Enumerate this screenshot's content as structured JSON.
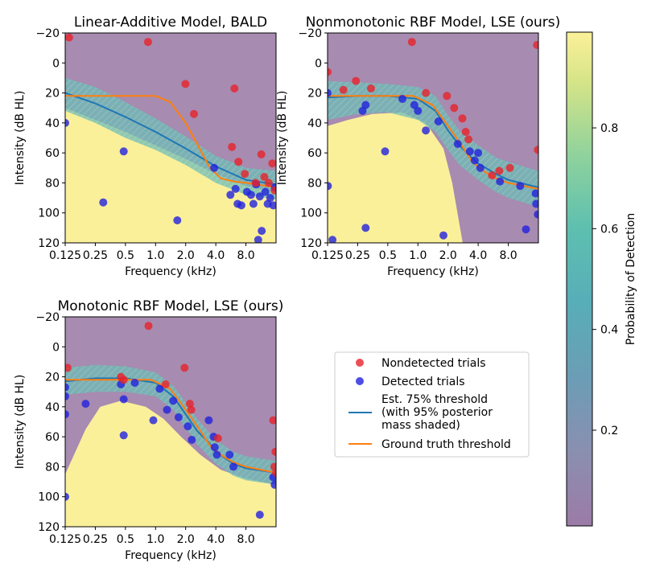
{
  "chart_data": [
    {
      "type": "scatter",
      "title": "Linear-Additive Model, BALD",
      "xlabel": "Frequency (kHz)",
      "ylabel": "Intensity (dB HL)",
      "xscale": "log2",
      "xlim": [
        0.125,
        16
      ],
      "ylim": [
        120,
        -20
      ],
      "xticks": [
        {
          "value": 0.125,
          "label": "0.125"
        },
        {
          "value": 0.25,
          "label": "0.25"
        },
        {
          "value": 0.5,
          "label": "0.5"
        },
        {
          "value": 1,
          "label": "1.0"
        },
        {
          "value": 2,
          "label": "2.0"
        },
        {
          "value": 4,
          "label": "4.0"
        },
        {
          "value": 8,
          "label": "8.0"
        }
      ],
      "yticks": [
        -20,
        0,
        20,
        40,
        60,
        80,
        100,
        120
      ],
      "nondetected": [
        [
          0.137,
          -17
        ],
        [
          0.84,
          -14
        ],
        [
          1.99,
          14
        ],
        [
          2.42,
          34
        ],
        [
          6.14,
          17
        ],
        [
          5.8,
          56
        ],
        [
          6.73,
          66
        ],
        [
          7.8,
          74
        ],
        [
          10,
          80
        ],
        [
          11.4,
          61
        ],
        [
          12.2,
          76
        ],
        [
          13.5,
          80
        ],
        [
          14.7,
          67
        ],
        [
          15.5,
          85
        ]
      ],
      "detected": [
        [
          0.125,
          40
        ],
        [
          0.3,
          93
        ],
        [
          0.48,
          59
        ],
        [
          1.65,
          105
        ],
        [
          3.85,
          70
        ],
        [
          5.6,
          88
        ],
        [
          6.3,
          84
        ],
        [
          6.6,
          94
        ],
        [
          7.2,
          95
        ],
        [
          8.2,
          86
        ],
        [
          9.0,
          88
        ],
        [
          9.5,
          94
        ],
        [
          10.1,
          81
        ],
        [
          10.6,
          118
        ],
        [
          11.0,
          89
        ],
        [
          11.5,
          112
        ],
        [
          12.5,
          86
        ],
        [
          13.2,
          94
        ],
        [
          14.0,
          90
        ],
        [
          15.0,
          95
        ],
        [
          15.6,
          83
        ]
      ],
      "threshold_est": [
        [
          0.125,
          20
        ],
        [
          0.25,
          27
        ],
        [
          0.5,
          36
        ],
        [
          1,
          46
        ],
        [
          2,
          57
        ],
        [
          4,
          69
        ],
        [
          8,
          78
        ],
        [
          16,
          81
        ]
      ],
      "threshold_band": {
        "upper": [
          [
            0.125,
            10
          ],
          [
            0.25,
            16
          ],
          [
            0.5,
            26
          ],
          [
            1,
            37
          ],
          [
            2,
            49
          ],
          [
            4,
            62
          ],
          [
            8,
            70
          ],
          [
            16,
            72
          ]
        ],
        "lower": [
          [
            0.125,
            32
          ],
          [
            0.25,
            40
          ],
          [
            0.5,
            50
          ],
          [
            1,
            58
          ],
          [
            2,
            68
          ],
          [
            4,
            80
          ],
          [
            8,
            88
          ],
          [
            16,
            91
          ]
        ]
      },
      "ground_truth": [
        [
          0.125,
          22
        ],
        [
          0.25,
          22
        ],
        [
          0.5,
          22
        ],
        [
          1,
          22
        ],
        [
          1.4,
          26
        ],
        [
          2,
          40
        ],
        [
          2.8,
          58
        ],
        [
          3.5,
          70
        ],
        [
          4.5,
          77
        ],
        [
          6,
          79
        ],
        [
          8,
          80
        ],
        [
          16,
          83
        ]
      ],
      "background_boundary": [
        [
          0.125,
          30
        ],
        [
          0.25,
          38
        ],
        [
          0.5,
          46
        ],
        [
          1,
          55
        ],
        [
          2,
          64
        ],
        [
          4,
          74
        ],
        [
          8,
          82
        ],
        [
          16,
          86
        ]
      ]
    },
    {
      "type": "scatter",
      "title": "Nonmonotonic RBF Model, LSE (ours)",
      "xlabel": "Frequency (kHz)",
      "ylabel": "Intensity (dB HL)",
      "xscale": "log2",
      "xlim": [
        0.125,
        16
      ],
      "ylim": [
        120,
        -20
      ],
      "xticks": [
        {
          "value": 0.125,
          "label": "0.125"
        },
        {
          "value": 0.25,
          "label": "0.25"
        },
        {
          "value": 0.5,
          "label": "0.5"
        },
        {
          "value": 1,
          "label": "1.0"
        },
        {
          "value": 2,
          "label": "2.0"
        },
        {
          "value": 4,
          "label": "4.0"
        },
        {
          "value": 8,
          "label": "8.0"
        }
      ],
      "yticks": [
        -20,
        0,
        20,
        40,
        60,
        80,
        100,
        120
      ],
      "nondetected": [
        [
          0.125,
          6
        ],
        [
          0.18,
          18
        ],
        [
          0.24,
          12
        ],
        [
          0.34,
          17
        ],
        [
          0.87,
          -14
        ],
        [
          1.2,
          20
        ],
        [
          1.95,
          22
        ],
        [
          2.3,
          30
        ],
        [
          2.78,
          37
        ],
        [
          3.0,
          46
        ],
        [
          3.2,
          51
        ],
        [
          5.5,
          75
        ],
        [
          6.5,
          72
        ],
        [
          8.3,
          70
        ],
        [
          15.5,
          -12
        ],
        [
          15.8,
          58
        ]
      ],
      "detected": [
        [
          0.125,
          20
        ],
        [
          0.126,
          82
        ],
        [
          0.14,
          118
        ],
        [
          0.28,
          32
        ],
        [
          0.3,
          110
        ],
        [
          0.3,
          28
        ],
        [
          0.47,
          59
        ],
        [
          0.7,
          24
        ],
        [
          0.92,
          28
        ],
        [
          1.0,
          32
        ],
        [
          1.2,
          45
        ],
        [
          1.6,
          39
        ],
        [
          1.8,
          115
        ],
        [
          2.5,
          54
        ],
        [
          3.3,
          59
        ],
        [
          3.7,
          65
        ],
        [
          4.0,
          60
        ],
        [
          4.2,
          70
        ],
        [
          6.6,
          79
        ],
        [
          10.5,
          82
        ],
        [
          12.0,
          111
        ],
        [
          15.0,
          87
        ],
        [
          15.2,
          94
        ],
        [
          15.8,
          101
        ]
      ],
      "threshold_est": [
        [
          0.125,
          23
        ],
        [
          0.25,
          22
        ],
        [
          0.5,
          22
        ],
        [
          1,
          24
        ],
        [
          1.5,
          32
        ],
        [
          2,
          45
        ],
        [
          2.6,
          55
        ],
        [
          3.3,
          62
        ],
        [
          4,
          67
        ],
        [
          6,
          74
        ],
        [
          8,
          78
        ],
        [
          16,
          83
        ]
      ],
      "threshold_band": {
        "upper": [
          [
            0.125,
            12
          ],
          [
            0.25,
            13
          ],
          [
            0.5,
            14
          ],
          [
            1,
            16
          ],
          [
            1.5,
            22
          ],
          [
            2,
            35
          ],
          [
            2.6,
            45
          ],
          [
            4,
            55
          ],
          [
            6,
            63
          ],
          [
            8,
            66
          ],
          [
            16,
            72
          ]
        ],
        "lower": [
          [
            0.125,
            38
          ],
          [
            0.25,
            34
          ],
          [
            0.5,
            33
          ],
          [
            1,
            38
          ],
          [
            1.5,
            46
          ],
          [
            2,
            58
          ],
          [
            2.6,
            68
          ],
          [
            4,
            78
          ],
          [
            6,
            86
          ],
          [
            8,
            90
          ],
          [
            16,
            96
          ]
        ]
      },
      "ground_truth": [
        [
          0.125,
          22
        ],
        [
          0.25,
          22
        ],
        [
          0.5,
          22
        ],
        [
          0.9,
          22
        ],
        [
          1.4,
          28
        ],
        [
          2,
          42
        ],
        [
          2.8,
          56
        ],
        [
          3.5,
          66
        ],
        [
          4.5,
          72
        ],
        [
          6,
          77
        ],
        [
          8,
          80
        ],
        [
          16,
          84
        ]
      ],
      "background_boundary": [
        [
          0.125,
          42
        ],
        [
          0.2,
          38
        ],
        [
          0.35,
          34
        ],
        [
          0.7,
          33
        ],
        [
          1.2,
          40
        ],
        [
          1.8,
          57
        ],
        [
          2.2,
          80
        ],
        [
          2.8,
          120
        ],
        [
          16,
          120
        ]
      ]
    },
    {
      "type": "scatter",
      "title": "Monotonic RBF Model, LSE (ours)",
      "xlabel": "Frequency (kHz)",
      "ylabel": "Intensity (dB HL)",
      "xscale": "log2",
      "xlim": [
        0.125,
        16
      ],
      "ylim": [
        120,
        -20
      ],
      "xticks": [
        {
          "value": 0.125,
          "label": "0.125"
        },
        {
          "value": 0.25,
          "label": "0.25"
        },
        {
          "value": 0.5,
          "label": "0.5"
        },
        {
          "value": 1,
          "label": "1.0"
        },
        {
          "value": 2,
          "label": "2.0"
        },
        {
          "value": 4,
          "label": "4.0"
        },
        {
          "value": 8,
          "label": "8.0"
        }
      ],
      "yticks": [
        -20,
        0,
        20,
        40,
        60,
        80,
        100,
        120
      ],
      "nondetected": [
        [
          0.132,
          14
        ],
        [
          0.45,
          20
        ],
        [
          0.48,
          22
        ],
        [
          0.85,
          -14
        ],
        [
          1.26,
          25
        ],
        [
          1.95,
          14
        ],
        [
          2.2,
          38
        ],
        [
          2.27,
          42
        ],
        [
          4.2,
          61
        ],
        [
          15.0,
          49
        ],
        [
          15.4,
          80
        ],
        [
          15.8,
          70
        ],
        [
          16.0,
          84
        ]
      ],
      "detected": [
        [
          0.125,
          27
        ],
        [
          0.125,
          33
        ],
        [
          0.125,
          45
        ],
        [
          0.125,
          100
        ],
        [
          0.2,
          38
        ],
        [
          0.45,
          25
        ],
        [
          0.48,
          35
        ],
        [
          0.48,
          59
        ],
        [
          0.62,
          24
        ],
        [
          0.95,
          49
        ],
        [
          1.1,
          28
        ],
        [
          1.3,
          42
        ],
        [
          1.5,
          36
        ],
        [
          1.7,
          47
        ],
        [
          2.1,
          53
        ],
        [
          2.3,
          62
        ],
        [
          3.4,
          49
        ],
        [
          3.8,
          60
        ],
        [
          3.9,
          67
        ],
        [
          4.1,
          72
        ],
        [
          5.5,
          72
        ],
        [
          6.0,
          80
        ],
        [
          11.0,
          112
        ],
        [
          15.0,
          87
        ],
        [
          15.5,
          92
        ]
      ],
      "threshold_est": [
        [
          0.125,
          23
        ],
        [
          0.25,
          21
        ],
        [
          0.5,
          21
        ],
        [
          1,
          24
        ],
        [
          1.5,
          33
        ],
        [
          2,
          45
        ],
        [
          2.6,
          56
        ],
        [
          3.3,
          63
        ],
        [
          4,
          70
        ],
        [
          6,
          78
        ],
        [
          8,
          81
        ],
        [
          16,
          84
        ]
      ],
      "threshold_band": {
        "upper": [
          [
            0.125,
            14
          ],
          [
            0.25,
            12
          ],
          [
            0.5,
            13
          ],
          [
            1,
            17
          ],
          [
            1.5,
            26
          ],
          [
            2,
            37
          ],
          [
            2.6,
            48
          ],
          [
            4,
            62
          ],
          [
            6,
            70
          ],
          [
            8,
            73
          ],
          [
            16,
            76
          ]
        ],
        "lower": [
          [
            0.125,
            32
          ],
          [
            0.25,
            30
          ],
          [
            0.5,
            30
          ],
          [
            1,
            33
          ],
          [
            1.5,
            42
          ],
          [
            2,
            54
          ],
          [
            2.6,
            65
          ],
          [
            4,
            78
          ],
          [
            6,
            86
          ],
          [
            8,
            89
          ],
          [
            16,
            92
          ]
        ]
      },
      "ground_truth": [
        [
          0.125,
          22
        ],
        [
          0.25,
          22
        ],
        [
          0.5,
          22
        ],
        [
          0.9,
          22
        ],
        [
          1.4,
          28
        ],
        [
          2,
          42
        ],
        [
          2.8,
          56
        ],
        [
          3.5,
          66
        ],
        [
          4.5,
          72
        ],
        [
          6,
          77
        ],
        [
          8,
          80
        ],
        [
          16,
          84
        ]
      ],
      "background_boundary": [
        [
          0.125,
          85
        ],
        [
          0.2,
          55
        ],
        [
          0.28,
          40
        ],
        [
          0.45,
          36
        ],
        [
          0.8,
          40
        ],
        [
          1.2,
          48
        ],
        [
          1.8,
          60
        ],
        [
          2.8,
          72
        ],
        [
          4.5,
          82
        ],
        [
          8,
          88
        ],
        [
          16,
          92
        ]
      ]
    }
  ],
  "legend": {
    "items": [
      {
        "kind": "red-marker",
        "label": "Nondetected trials"
      },
      {
        "kind": "blue-marker",
        "label": "Detected trials"
      },
      {
        "kind": "blue-line",
        "label": "Est. 75% threshold\n(with 95% posterior\nmass shaded)"
      },
      {
        "kind": "orange-line",
        "label": "Ground truth threshold"
      }
    ]
  },
  "colorbar": {
    "label": "Probability of Detection",
    "ticks": [
      {
        "value": 0.2,
        "label": "0.2"
      },
      {
        "value": 0.4,
        "label": "0.4"
      },
      {
        "value": 0.6,
        "label": "0.6"
      },
      {
        "value": 0.8,
        "label": "0.8"
      }
    ],
    "range": [
      0.01,
      0.99
    ]
  },
  "colors": {
    "nondetected": "#e8222a",
    "detected": "#2222dd",
    "estimate": "#1f77b4",
    "ground_truth": "#ff7f0e",
    "low_prob": "#a78bb0",
    "high_prob": "#fbf09a",
    "mid_prob": "#6cbcb6"
  }
}
